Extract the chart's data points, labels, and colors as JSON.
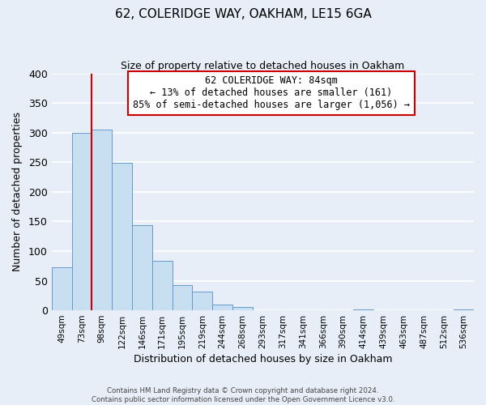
{
  "title": "62, COLERIDGE WAY, OAKHAM, LE15 6GA",
  "subtitle": "Size of property relative to detached houses in Oakham",
  "xlabel": "Distribution of detached houses by size in Oakham",
  "ylabel": "Number of detached properties",
  "categories": [
    "49sqm",
    "73sqm",
    "98sqm",
    "122sqm",
    "146sqm",
    "171sqm",
    "195sqm",
    "219sqm",
    "244sqm",
    "268sqm",
    "293sqm",
    "317sqm",
    "341sqm",
    "366sqm",
    "390sqm",
    "414sqm",
    "439sqm",
    "463sqm",
    "487sqm",
    "512sqm",
    "536sqm"
  ],
  "values": [
    73,
    300,
    305,
    249,
    144,
    83,
    43,
    32,
    9,
    6,
    0,
    0,
    0,
    0,
    0,
    1,
    0,
    0,
    0,
    0,
    2
  ],
  "bar_color": "#c8dff2",
  "bar_edge_color": "#6699cc",
  "vline_color": "#cc0000",
  "vline_x": 1.5,
  "ylim": [
    0,
    400
  ],
  "yticks": [
    0,
    50,
    100,
    150,
    200,
    250,
    300,
    350,
    400
  ],
  "annotation_title": "62 COLERIDGE WAY: 84sqm",
  "annotation_line1": "← 13% of detached houses are smaller (161)",
  "annotation_line2": "85% of semi-detached houses are larger (1,056) →",
  "footer_line1": "Contains HM Land Registry data © Crown copyright and database right 2024.",
  "footer_line2": "Contains public sector information licensed under the Open Government Licence v3.0.",
  "background_color": "#e8eef8",
  "plot_bg_color": "#e8eef8",
  "grid_color": "#ffffff",
  "title_fontsize": 11,
  "subtitle_fontsize": 9,
  "ylabel_text": "Number of detached properties"
}
